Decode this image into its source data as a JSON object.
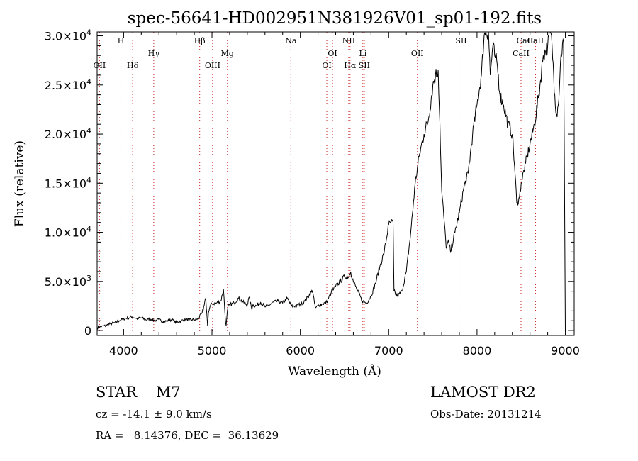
{
  "chart_data": {
    "type": "line",
    "title": "spec-56641-HD002951N381926V01_sp01-192.fits",
    "xlabel": "Wavelength (Å)",
    "ylabel": "Flux (relative)",
    "xlim": [
      3700,
      9100
    ],
    "ylim": [
      -500,
      30400
    ],
    "x_ticks": [
      {
        "value": 4000,
        "label": "4000"
      },
      {
        "value": 5000,
        "label": "5000"
      },
      {
        "value": 6000,
        "label": "6000"
      },
      {
        "value": 7000,
        "label": "7000"
      },
      {
        "value": 8000,
        "label": "8000"
      },
      {
        "value": 9000,
        "label": "9000"
      }
    ],
    "y_ticks": [
      {
        "value": 0,
        "mant": "0",
        "exp": ""
      },
      {
        "value": 5000,
        "mant": "5.0×10",
        "exp": "3"
      },
      {
        "value": 10000,
        "mant": "1.0×10",
        "exp": "4"
      },
      {
        "value": 15000,
        "mant": "1.5×10",
        "exp": "4"
      },
      {
        "value": 20000,
        "mant": "2.0×10",
        "exp": "4"
      },
      {
        "value": 25000,
        "mant": "2.5×10",
        "exp": "4"
      },
      {
        "value": 30000,
        "mant": "3.0×10",
        "exp": "4"
      }
    ],
    "grid": false,
    "line_color": "#000000",
    "marker_line_color": "#cc2222",
    "lines": [
      {
        "label": "OII",
        "x": 3727,
        "row": 3
      },
      {
        "label": "H",
        "x": 3969,
        "row": 1
      },
      {
        "label": "Hδ",
        "x": 4102,
        "row": 3
      },
      {
        "label": "Hγ",
        "x": 4341,
        "row": 2
      },
      {
        "label": "Hβ",
        "x": 4861,
        "row": 1
      },
      {
        "label": "OIII",
        "x": 5007,
        "row": 3
      },
      {
        "label": "Mg",
        "x": 5175,
        "row": 2
      },
      {
        "label": "Na",
        "x": 5893,
        "row": 1
      },
      {
        "label": "OI",
        "x": 6300,
        "row": 3
      },
      {
        "label": "OI",
        "x": 6364,
        "row": 2
      },
      {
        "label": "NII",
        "x": 6548,
        "row": 1
      },
      {
        "label": "Hα",
        "x": 6563,
        "row": 3
      },
      {
        "label": "Li",
        "x": 6708,
        "row": 2
      },
      {
        "label": "SII",
        "x": 6724,
        "row": 3
      },
      {
        "label": "OII",
        "x": 7325,
        "row": 2
      },
      {
        "label": "SII",
        "x": 7820,
        "row": 1
      },
      {
        "label": "CaII",
        "x": 8498,
        "row": 2
      },
      {
        "label": "CaII",
        "x": 8542,
        "row": 1
      },
      {
        "label": "CaII",
        "x": 8662,
        "row": 1
      }
    ],
    "x": [
      3700,
      3750,
      3800,
      3850,
      3900,
      3950,
      4000,
      4050,
      4100,
      4150,
      4200,
      4250,
      4300,
      4350,
      4400,
      4450,
      4500,
      4550,
      4600,
      4650,
      4700,
      4750,
      4800,
      4850,
      4870,
      4900,
      4930,
      4950,
      4960,
      4980,
      5000,
      5050,
      5100,
      5130,
      5150,
      5160,
      5180,
      5200,
      5250,
      5300,
      5350,
      5400,
      5420,
      5450,
      5460,
      5500,
      5550,
      5600,
      5650,
      5700,
      5750,
      5800,
      5850,
      5900,
      5950,
      6000,
      6050,
      6100,
      6140,
      6160,
      6170,
      6200,
      6250,
      6300,
      6350,
      6400,
      6450,
      6500,
      6550,
      6570,
      6600,
      6650,
      6700,
      6750,
      6800,
      6850,
      6900,
      6950,
      7000,
      7020,
      7050,
      7060,
      7100,
      7150,
      7200,
      7250,
      7300,
      7350,
      7400,
      7450,
      7500,
      7530,
      7560,
      7580,
      7600,
      7630,
      7650,
      7680,
      7700,
      7750,
      7800,
      7850,
      7900,
      7950,
      8000,
      8050,
      8080,
      8100,
      8130,
      8150,
      8180,
      8200,
      8230,
      8260,
      8300,
      8350,
      8400,
      8430,
      8450,
      8480,
      8500,
      8550,
      8600,
      8650,
      8700,
      8750,
      8800,
      8830,
      8850,
      8880,
      8900,
      8920,
      8950,
      8980,
      9000
    ],
    "y": [
      300,
      400,
      500,
      700,
      800,
      1000,
      1200,
      1300,
      1400,
      1200,
      1300,
      1100,
      1200,
      1000,
      1100,
      900,
      1000,
      1100,
      800,
      1000,
      1100,
      1100,
      1100,
      1200,
      1700,
      2000,
      3300,
      500,
      1800,
      2500,
      2700,
      2800,
      3000,
      4200,
      1300,
      500,
      2400,
      2600,
      2800,
      3300,
      2900,
      2600,
      3400,
      2200,
      2600,
      2500,
      2900,
      2400,
      2600,
      2900,
      3000,
      2800,
      3300,
      2500,
      2500,
      2700,
      3000,
      3600,
      4100,
      2800,
      2300,
      2500,
      2700,
      2900,
      3900,
      4500,
      5000,
      5500,
      5500,
      6000,
      5000,
      4000,
      3000,
      2800,
      3500,
      4800,
      6500,
      8000,
      10800,
      11000,
      11000,
      4000,
      3500,
      4000,
      6000,
      10000,
      15000,
      18000,
      20000,
      21500,
      25000,
      26000,
      26500,
      21000,
      14200,
      11000,
      8500,
      9000,
      8000,
      10000,
      12000,
      14500,
      16000,
      20000,
      23000,
      26000,
      30000,
      30400,
      30400,
      26000,
      29000,
      28000,
      27000,
      24000,
      23000,
      21000,
      20000,
      16000,
      13000,
      13500,
      15000,
      17000,
      19000,
      21000,
      24000,
      28000,
      29000,
      30400,
      29000,
      24000,
      22000,
      23000,
      28000,
      29500,
      0
    ]
  },
  "info": {
    "left1": "STAR    M7",
    "left2": "cz = -14.1 ± 9.0 km/s",
    "left3": "RA =   8.14376, DEC =  36.13629",
    "right1": "LAMOST DR2",
    "right2": "Obs-Date: 20131214"
  }
}
